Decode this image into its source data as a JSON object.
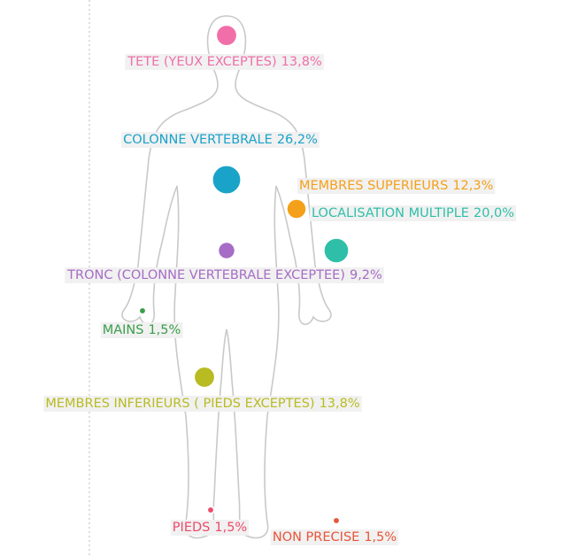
{
  "chart_data": {
    "type": "bubble",
    "categories": [
      "TETE (YEUX EXCEPTES)",
      "COLONNE VERTEBRALE",
      "MEMBRES SUPERIEURS",
      "LOCALISATION MULTIPLE",
      "TRONC (COLONNE VERTEBRALE EXCEPTEE)",
      "MAINS",
      "MEMBRES INFERIEURS ( PIEDS EXCEPTES)",
      "PIEDS",
      "NON PRECISE"
    ],
    "values": [
      13.8,
      26.2,
      12.3,
      20.0,
      9.2,
      1.5,
      13.8,
      1.5,
      1.5
    ],
    "value_labels": [
      "13,8%",
      "26,2%",
      "12,3%",
      "20,0%",
      "9,2%",
      "1,5%",
      "13,8%",
      "1,5%",
      "1,5%"
    ],
    "colors": [
      "#f06fa9",
      "#1aa3c9",
      "#f5a01a",
      "#2fbfa8",
      "#a66cc6",
      "#3a9e4a",
      "#b8bb22",
      "#ee4a6a",
      "#e8553a"
    ]
  }
}
